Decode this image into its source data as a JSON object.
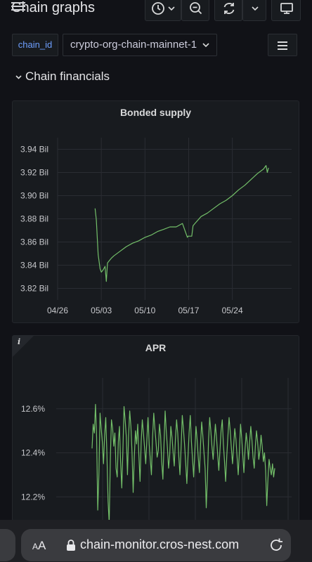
{
  "header": {
    "title": "Chain graphs",
    "time_picker_icon": "clock-icon",
    "zoom_icon": "zoom-out-icon",
    "refresh_icon": "refresh-icon",
    "tv_icon": "tv-mode-icon"
  },
  "variables": {
    "label": "chain_id",
    "value": "crypto-org-chain-mainnet-1"
  },
  "row": {
    "title": "Chain financials"
  },
  "panels": {
    "bonded": {
      "title": "Bonded supply"
    },
    "apr": {
      "title": "APR",
      "info": "i"
    }
  },
  "browser": {
    "aa_label": "A",
    "aa_label_big": "A",
    "url": "chain-monitor.cros-nest.com"
  },
  "colors": {
    "series": "#73bf69",
    "accent": "#6e9fff",
    "background": "#111217",
    "panel": "#181b1f"
  },
  "chart_data": [
    {
      "type": "line",
      "title": "Bonded supply",
      "ylabel": "",
      "yticks": [
        "3.82 Bil",
        "3.84 Bil",
        "3.86 Bil",
        "3.88 Bil",
        "3.90 Bil",
        "3.92 Bil",
        "3.94 Bil"
      ],
      "xticks": [
        "04/26",
        "05/03",
        "05/10",
        "05/17",
        "05/24"
      ],
      "ylim": [
        3.81,
        3.95
      ],
      "x": [
        6.0,
        6.2,
        6.5,
        6.8,
        7.0,
        7.3,
        7.6,
        7.8,
        8.0,
        8.3,
        8.6,
        9.0,
        10,
        11,
        12,
        13,
        14,
        15,
        16,
        17,
        18,
        19,
        20,
        20.8,
        20.9,
        21.5,
        21.7,
        22,
        23,
        24,
        25,
        26,
        27,
        28,
        29,
        30,
        31,
        32,
        33,
        33.4,
        33.6,
        33.8
      ],
      "series": [
        {
          "values": [
            3.889,
            3.879,
            3.849,
            3.837,
            3.834,
            3.836,
            3.839,
            3.826,
            3.842,
            3.844,
            3.846,
            3.848,
            3.852,
            3.856,
            3.859,
            3.861,
            3.864,
            3.866,
            3.869,
            3.871,
            3.873,
            3.873,
            3.876,
            3.864,
            3.865,
            3.865,
            3.874,
            3.876,
            3.882,
            3.885,
            3.889,
            3.893,
            3.896,
            3.9,
            3.905,
            3.909,
            3.914,
            3.919,
            3.923,
            3.926,
            3.92,
            3.924
          ]
        }
      ]
    },
    {
      "type": "line",
      "title": "APR",
      "ylabel": "",
      "yticks": [
        "12.2%",
        "12.4%",
        "12.6%"
      ],
      "ylim": [
        12.07,
        12.74
      ],
      "x": [
        0,
        1,
        2,
        3,
        4,
        5,
        6,
        7,
        8,
        9,
        10,
        11,
        12,
        13,
        14,
        15,
        16,
        17,
        18,
        19,
        20,
        21,
        22,
        23,
        24,
        25,
        26,
        27,
        28,
        29,
        30,
        31,
        32,
        33,
        34,
        35,
        36,
        37,
        38,
        39,
        40,
        41,
        42,
        43,
        44,
        45,
        46,
        47,
        48,
        49,
        50,
        51,
        52,
        53,
        54,
        55,
        56,
        57,
        58,
        59,
        60,
        61,
        62,
        63,
        64,
        65,
        66,
        67,
        68,
        69,
        70,
        71,
        72,
        73,
        74,
        75,
        76,
        77,
        78,
        79,
        80,
        81,
        82,
        83,
        84,
        85,
        86,
        87,
        88,
        89,
        90,
        91,
        92,
        93,
        94,
        95,
        96,
        97,
        98,
        99,
        100,
        101,
        102,
        103,
        104,
        105,
        106,
        107,
        108,
        109,
        110,
        111,
        112,
        113,
        114,
        115,
        116,
        117,
        118,
        119,
        120,
        121,
        122,
        123,
        124,
        125,
        126,
        127,
        128,
        129,
        130,
        131,
        132,
        133,
        134,
        135,
        136,
        137,
        138,
        139,
        140,
        141,
        142,
        143,
        144,
        145,
        146,
        147,
        148,
        149,
        150,
        151,
        152,
        153,
        154,
        155,
        156,
        157,
        158,
        159,
        160
      ],
      "series": [
        {
          "values": [
            12.42,
            12.53,
            12.49,
            12.62,
            12.47,
            12.14,
            12.31,
            12.58,
            12.51,
            12.45,
            12.35,
            12.48,
            12.56,
            12.4,
            12.18,
            12.08,
            12.37,
            12.55,
            12.51,
            12.43,
            12.49,
            12.33,
            12.29,
            12.45,
            12.52,
            12.36,
            12.24,
            12.41,
            12.61,
            12.55,
            12.47,
            12.3,
            12.48,
            12.59,
            12.52,
            12.4,
            12.22,
            12.38,
            12.5,
            12.44,
            12.53,
            12.39,
            12.27,
            12.45,
            12.55,
            12.49,
            12.42,
            12.35,
            12.46,
            12.56,
            12.44,
            12.37,
            12.3,
            12.47,
            12.58,
            12.51,
            12.45,
            12.38,
            12.41,
            12.53,
            12.48,
            12.36,
            12.28,
            12.44,
            12.59,
            12.5,
            12.42,
            12.33,
            12.39,
            12.52,
            12.47,
            12.4,
            12.34,
            12.46,
            12.55,
            12.49,
            12.38,
            12.3,
            12.43,
            12.57,
            12.51,
            12.44,
            12.35,
            12.26,
            12.38,
            12.49,
            12.57,
            12.45,
            12.37,
            12.29,
            12.41,
            12.52,
            12.46,
            12.38,
            12.31,
            12.44,
            12.54,
            12.48,
            12.4,
            12.33,
            12.15,
            12.28,
            12.46,
            12.56,
            12.5,
            12.43,
            12.37,
            12.45,
            12.53,
            12.47,
            12.39,
            12.32,
            12.41,
            12.5,
            12.55,
            12.44,
            12.36,
            12.27,
            12.39,
            12.48,
            12.56,
            12.5,
            12.42,
            12.35,
            12.43,
            12.51,
            12.46,
            12.38,
            12.3,
            12.4,
            12.53,
            12.47,
            12.39,
            12.31,
            12.42,
            12.49,
            12.44,
            12.37,
            12.45,
            12.52,
            12.46,
            12.38,
            12.33,
            12.43,
            12.5,
            12.45,
            12.37,
            12.41,
            12.48,
            12.43,
            12.36,
            12.4,
            12.32,
            12.16,
            12.28,
            12.37,
            12.33,
            12.3,
            12.35,
            12.29,
            12.33
          ]
        }
      ]
    }
  ]
}
